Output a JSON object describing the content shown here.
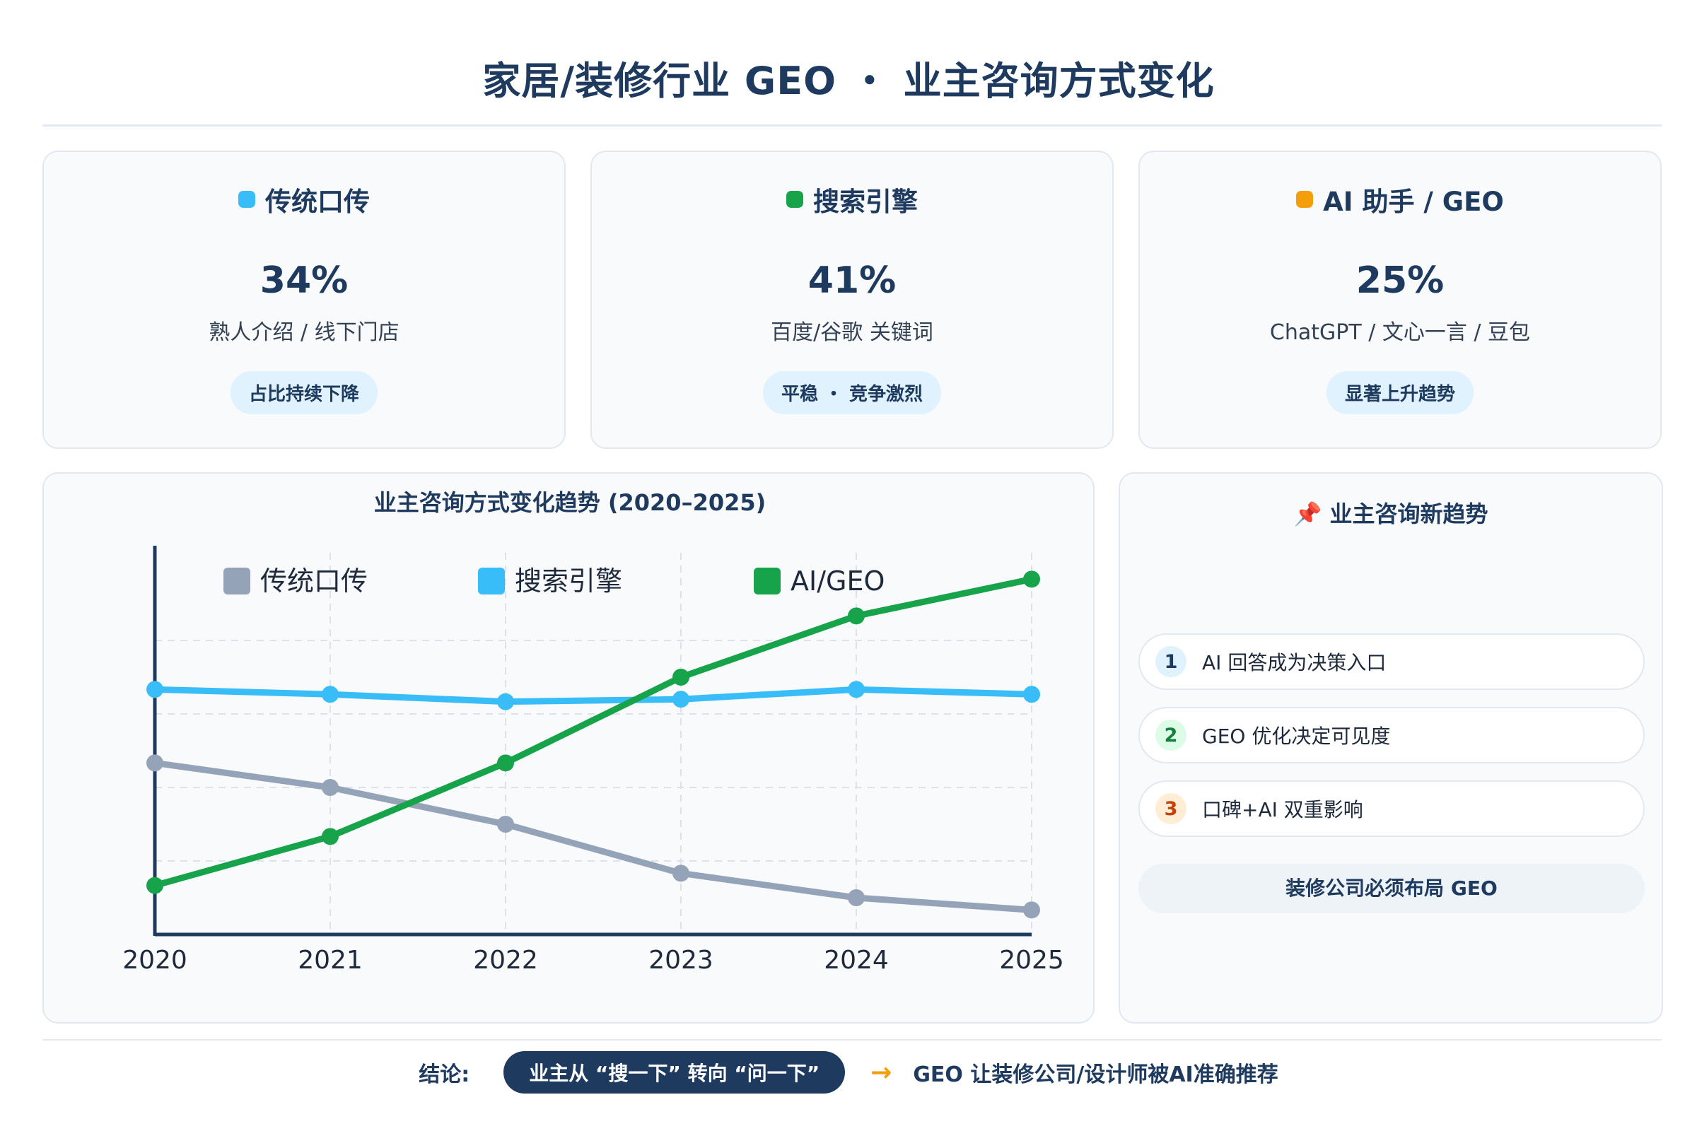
{
  "title": "家居/装修行业 GEO ・ 业主咨询方式变化",
  "stats": [
    {
      "label": "传统口传",
      "pct": "34%",
      "desc": "熟人介绍 / 线下门店",
      "pill": "占比持续下降",
      "color": "#38bdf8"
    },
    {
      "label": "搜索引擎",
      "pct": "41%",
      "desc": "百度/谷歌 关键词",
      "pill": "平稳 ・ 竞争激烈",
      "color": "#16a34a"
    },
    {
      "label": "AI 助手 / GEO",
      "pct": "25%",
      "desc": "ChatGPT / 文心一言 / 豆包",
      "pill": "显著上升趋势",
      "color": "#f59e0b"
    }
  ],
  "chart_data": {
    "type": "line",
    "title": "业主咨询方式变化趋势 (2020–2025)",
    "categories": [
      "2020",
      "2021",
      "2022",
      "2023",
      "2024",
      "2025"
    ],
    "ylim": [
      0,
      75
    ],
    "grid": true,
    "legend": "top",
    "series": [
      {
        "name": "传统口传",
        "color": "#94a3b8",
        "values": [
          35,
          30,
          22.5,
          12.5,
          7.5,
          5
        ]
      },
      {
        "name": "搜索引擎",
        "color": "#38bdf8",
        "values": [
          50,
          49,
          47.5,
          48,
          50,
          49
        ]
      },
      {
        "name": "AI/GEO",
        "color": "#16a34a",
        "values": [
          10,
          20,
          35,
          52.5,
          65,
          72.5
        ]
      }
    ]
  },
  "trends": {
    "title": "📌 业主咨询新趋势",
    "items": [
      {
        "num": "1",
        "text": "AI 回答成为决策入口",
        "bg": "#e0f2fe",
        "fg": "#1e3a5f"
      },
      {
        "num": "2",
        "text": "GEO 优化决定可见度",
        "bg": "#dcfce7",
        "fg": "#15803d"
      },
      {
        "num": "3",
        "text": "口碑+AI 双重影响",
        "bg": "#ffedd5",
        "fg": "#c2410c"
      }
    ],
    "cta": "装修公司必须布局 GEO"
  },
  "conclusion": {
    "label": "结论:",
    "pill": "业主从 “搜一下” 转向 “问一下”",
    "arrow": "→",
    "text": "GEO 让装修公司/设计师被AI准确推荐"
  }
}
